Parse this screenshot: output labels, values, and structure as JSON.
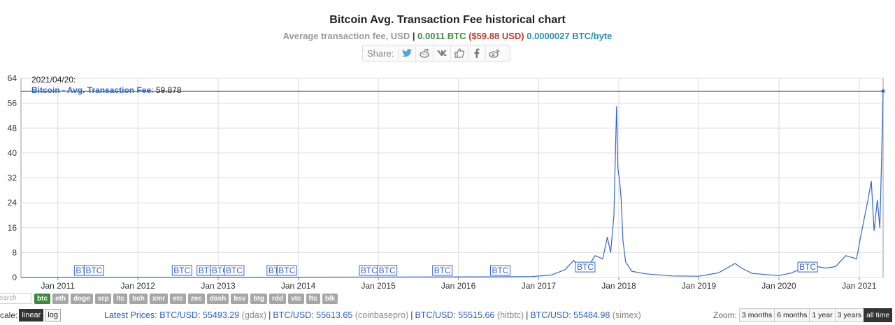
{
  "header": {
    "title": "Bitcoin Avg. Transaction Fee historical chart",
    "subtitle_label": "Average transaction fee, USD",
    "fee_btc": "0.0011 BTC",
    "fee_usd": "($59.88 USD)",
    "fee_per_byte": "0.0000027 BTC/byte",
    "share_label": "Share:"
  },
  "tooltip": {
    "date": "2021/04/20:",
    "series": "Bitcoin - Avg. Transaction Fee",
    "value": "59.878"
  },
  "chart_data": {
    "type": "line",
    "title": "Bitcoin Avg. Transaction Fee historical chart",
    "ylabel": "Average transaction fee, USD",
    "ylim": [
      0,
      64
    ],
    "yticks": [
      0,
      8,
      16,
      24,
      32,
      40,
      48,
      56,
      64
    ],
    "xlim": [
      "2010-07-17",
      "2021-04-20"
    ],
    "xticks": [
      {
        "label": "Jan 2011",
        "date": "2011-01-01"
      },
      {
        "label": "Jan 2012",
        "date": "2012-01-01"
      },
      {
        "label": "Jan 2013",
        "date": "2013-01-01"
      },
      {
        "label": "Jan 2014",
        "date": "2014-01-01"
      },
      {
        "label": "Jan 2015",
        "date": "2015-01-01"
      },
      {
        "label": "Jan 2016",
        "date": "2016-01-01"
      },
      {
        "label": "Jan 2017",
        "date": "2017-01-01"
      },
      {
        "label": "Jan 2018",
        "date": "2018-01-01"
      },
      {
        "label": "Jan 2019",
        "date": "2019-01-01"
      },
      {
        "label": "Jan 2020",
        "date": "2020-01-01"
      },
      {
        "label": "Jan 2021",
        "date": "2021-01-01"
      }
    ],
    "grid": true,
    "series": [
      {
        "name": "Bitcoin - Avg. Transaction Fee",
        "color": "#3366cc",
        "points": [
          [
            "2010-07-17",
            0
          ],
          [
            "2013-12-01",
            0.1
          ],
          [
            "2016-06-01",
            0.2
          ],
          [
            "2016-12-01",
            0.3
          ],
          [
            "2017-03-01",
            0.8
          ],
          [
            "2017-05-01",
            2.5
          ],
          [
            "2017-06-10",
            5.5
          ],
          [
            "2017-07-15",
            2.0
          ],
          [
            "2017-08-15",
            3.5
          ],
          [
            "2017-09-15",
            7
          ],
          [
            "2017-10-20",
            6
          ],
          [
            "2017-11-10",
            13
          ],
          [
            "2017-11-25",
            8
          ],
          [
            "2017-12-10",
            20
          ],
          [
            "2017-12-22",
            55
          ],
          [
            "2017-12-28",
            35
          ],
          [
            "2018-01-05",
            31
          ],
          [
            "2018-01-12",
            25
          ],
          [
            "2018-01-20",
            12
          ],
          [
            "2018-02-01",
            5
          ],
          [
            "2018-03-01",
            2
          ],
          [
            "2018-05-01",
            1.2
          ],
          [
            "2018-09-01",
            0.5
          ],
          [
            "2019-01-01",
            0.4
          ],
          [
            "2019-04-01",
            1.5
          ],
          [
            "2019-06-15",
            4.5
          ],
          [
            "2019-07-15",
            3
          ],
          [
            "2019-09-01",
            1.3
          ],
          [
            "2020-01-01",
            0.6
          ],
          [
            "2020-03-01",
            1.5
          ],
          [
            "2020-05-15",
            4
          ],
          [
            "2020-08-01",
            3
          ],
          [
            "2020-09-15",
            3.5
          ],
          [
            "2020-11-01",
            7
          ],
          [
            "2020-12-20",
            6
          ],
          [
            "2021-01-10",
            14
          ],
          [
            "2021-02-10",
            25
          ],
          [
            "2021-02-25",
            31
          ],
          [
            "2021-03-10",
            15
          ],
          [
            "2021-03-25",
            25
          ],
          [
            "2021-04-05",
            16
          ],
          [
            "2021-04-12",
            35
          ],
          [
            "2021-04-20",
            59.878
          ]
        ]
      }
    ],
    "annotations": [
      {
        "label": "BTC",
        "date": "2011-05-01"
      },
      {
        "label": "BTC",
        "date": "2011-06-15"
      },
      {
        "label": "BTC",
        "date": "2012-07-20"
      },
      {
        "label": "BTC",
        "date": "2012-11-10"
      },
      {
        "label": "BTC",
        "date": "2013-01-10"
      },
      {
        "label": "BTC",
        "date": "2013-03-15"
      },
      {
        "label": "BTC",
        "date": "2013-09-25"
      },
      {
        "label": "BTC",
        "date": "2013-11-10"
      },
      {
        "label": "BTC",
        "date": "2014-11-20"
      },
      {
        "label": "BTC",
        "date": "2015-02-10"
      },
      {
        "label": "BTC",
        "date": "2015-10-20"
      },
      {
        "label": "BTC",
        "date": "2016-07-10"
      },
      {
        "label": "BTC",
        "date": "2017-08-01",
        "y": 2
      },
      {
        "label": "BTC",
        "date": "2020-05-11",
        "y": 2
      }
    ]
  },
  "coins": [
    "btc",
    "eth",
    "doge",
    "xrp",
    "ltc",
    "bch",
    "xmr",
    "etc",
    "zec",
    "dash",
    "bsv",
    "btg",
    "rdd",
    "vtc",
    "ftc",
    "blk"
  ],
  "active_coin": "btc",
  "search_placeholder": "Search",
  "scale": {
    "label": "Scale:",
    "options": [
      "linear",
      "log"
    ],
    "active": "linear"
  },
  "prices": {
    "label": "Latest Prices:",
    "items": [
      {
        "pair": "BTC/USD: 55493.29",
        "source": "(gdax)"
      },
      {
        "pair": "BTC/USD: 55613.65",
        "source": "(coinbasepro)"
      },
      {
        "pair": "BTC/USD: 55515.66",
        "source": "(hitbtc)"
      },
      {
        "pair": "BTC/USD: 55484.98",
        "source": "(simex)"
      }
    ]
  },
  "zoom": {
    "label": "Zoom:",
    "options": [
      "3 months",
      "6 months",
      "1 year",
      "3 years",
      "all time"
    ],
    "active": "all time"
  }
}
